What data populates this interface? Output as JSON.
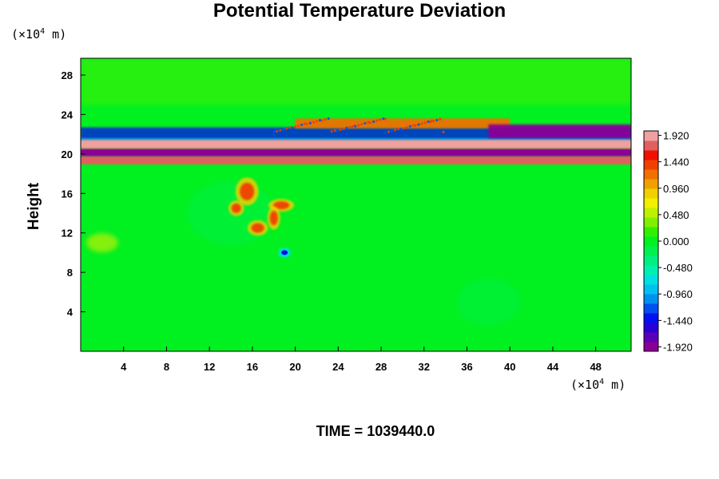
{
  "chart_data": {
    "type": "heatmap",
    "title": "Potential Temperature Deviation",
    "ylabel": "Height",
    "x_unit": {
      "prefix": "(×10",
      "exp": "4",
      "suffix": " m)"
    },
    "y_unit": {
      "prefix": "(×10",
      "exp": "4",
      "suffix": " m)"
    },
    "xlim": [
      0,
      51.3
    ],
    "ylim": [
      0,
      29.7
    ],
    "x_ticks": [
      4,
      8,
      12,
      16,
      20,
      24,
      28,
      32,
      36,
      40,
      44,
      48
    ],
    "y_ticks": [
      4,
      8,
      12,
      16,
      20,
      24,
      28
    ],
    "colorbar": {
      "min": -2.0,
      "max": 2.0,
      "labels": [
        "1.920",
        "1.440",
        "0.960",
        "0.480",
        "0.000",
        "-0.480",
        "-0.960",
        "-1.440",
        "-1.920"
      ],
      "colors": [
        "#8a0096",
        "#5a00b8",
        "#2a00d8",
        "#0010f0",
        "#0050f0",
        "#0090f0",
        "#00c0f0",
        "#00e0e0",
        "#00f0b0",
        "#00f080",
        "#00f050",
        "#00f020",
        "#30f000",
        "#80f000",
        "#c0f000",
        "#f0f000",
        "#f0d000",
        "#f0a000",
        "#f07000",
        "#f04000",
        "#f01000",
        "#e06060",
        "#f0a0a0"
      ]
    },
    "features": [
      {
        "name": "upper warm layer",
        "x": [
          20,
          40
        ],
        "y": [
          22.6,
          23.6
        ],
        "value": 1.3
      },
      {
        "name": "upper cold layer",
        "x": [
          38,
          51.3
        ],
        "y": [
          21.6,
          23.0
        ],
        "value": -2.0
      },
      {
        "name": "pink band",
        "x": [
          0,
          51.3
        ],
        "y": [
          20.6,
          21.4
        ],
        "value": 2.0
      },
      {
        "name": "purple band",
        "x": [
          0,
          51.3
        ],
        "y": [
          19.8,
          20.5
        ],
        "value": -2.0
      },
      {
        "name": "lower pink band",
        "x": [
          0,
          51.3
        ],
        "y": [
          19.0,
          19.7
        ],
        "value": 1.9
      },
      {
        "name": "convective plume",
        "x": [
          13,
          20
        ],
        "y": [
          10,
          17
        ],
        "value": 1.5
      },
      {
        "name": "cold core",
        "x": [
          18.5,
          19.5
        ],
        "y": [
          9.5,
          10.5
        ],
        "value": -1.5
      }
    ]
  },
  "footer": {
    "time_label": "TIME = 1039440.0"
  }
}
